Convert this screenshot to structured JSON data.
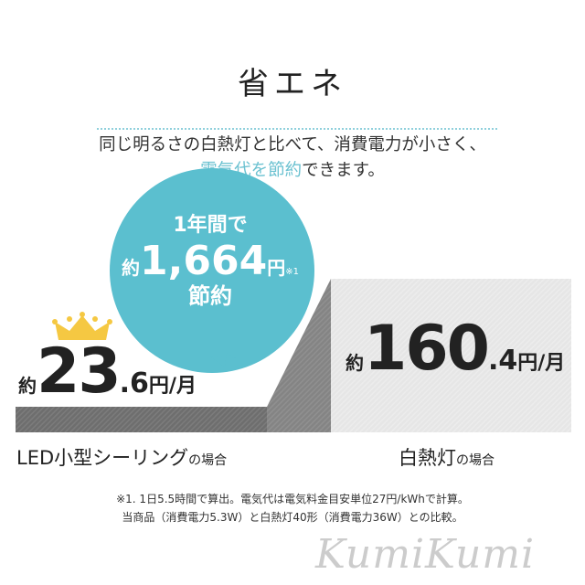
{
  "title": "省エネ",
  "subtitle": {
    "line1": "同じ明るさの白熱灯と比べて、消費電力が小さく、",
    "line2_accent": "電気代を節約",
    "line2_rest": "できます。"
  },
  "bubble": {
    "line1": "1年間で",
    "prefix": "約",
    "amount": "1,664",
    "unit": "円",
    "note_mark": "※1",
    "line3": "節約"
  },
  "led": {
    "prefix": "約",
    "integer": "23",
    "decimal": ".6",
    "unit": "円/月",
    "label": "LED小型シーリング",
    "label_suffix": "の場合"
  },
  "incandescent": {
    "prefix": "約",
    "integer": "160",
    "decimal": ".4",
    "unit": "円/月",
    "label": "白熱灯",
    "label_suffix": "の場合"
  },
  "footnote": {
    "line1": "※1. 1日5.5時間で算出。電気代は電気料金目安単位27円/kWhで計算。",
    "line2": "当商品（消費電力5.3W）と白熱灯40形（消費電力36W）との比較。"
  },
  "watermark": "KumiKumi",
  "colors": {
    "accent": "#5bbfcf",
    "crown": "#f5c842",
    "led_bar": "#707070",
    "incandescent_bar": "#e6e6e6"
  }
}
